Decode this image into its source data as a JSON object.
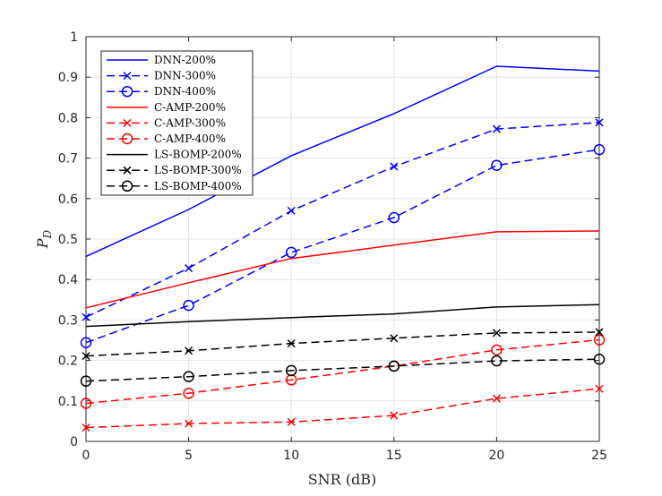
{
  "chart_data": {
    "type": "line",
    "title": "",
    "xlabel": "SNR (dB)",
    "ylabel_main": "P",
    "ylabel_sub": "D",
    "x": [
      0,
      5,
      10,
      15,
      20,
      25
    ],
    "xlim": [
      0,
      25
    ],
    "ylim": [
      0,
      1
    ],
    "xticks": [
      0,
      5,
      10,
      15,
      20,
      25
    ],
    "yticks": [
      0,
      0.1,
      0.2,
      0.3,
      0.4,
      0.5,
      0.6,
      0.7,
      0.8,
      0.9,
      1
    ],
    "ytick_labels": [
      "0",
      "0.1",
      "0.2",
      "0.3",
      "0.4",
      "0.5",
      "0.6",
      "0.7",
      "0.8",
      "0.9",
      "1"
    ],
    "grid": true,
    "legend_position": "top-left",
    "series": [
      {
        "name": "DNN-200%",
        "values": [
          0.457,
          0.573,
          0.706,
          0.81,
          0.927,
          0.915
        ],
        "color": "#0000ff",
        "dash": "solid",
        "marker": "none"
      },
      {
        "name": "DNN-300%",
        "values": [
          0.307,
          0.428,
          0.57,
          0.679,
          0.772,
          0.788
        ],
        "color": "#0000ff",
        "dash": "dashed",
        "marker": "x"
      },
      {
        "name": "DNN-400%",
        "values": [
          0.244,
          0.336,
          0.467,
          0.553,
          0.682,
          0.721
        ],
        "color": "#0000ff",
        "dash": "dashed",
        "marker": "o"
      },
      {
        "name": "C-AMP-200%",
        "values": [
          0.33,
          0.392,
          0.452,
          0.485,
          0.518,
          0.52
        ],
        "color": "#ff0000",
        "dash": "solid",
        "marker": "none"
      },
      {
        "name": "C-AMP-300%",
        "values": [
          0.034,
          0.044,
          0.048,
          0.064,
          0.106,
          0.13
        ],
        "color": "#ff0000",
        "dash": "dashed",
        "marker": "x"
      },
      {
        "name": "C-AMP-400%",
        "values": [
          0.094,
          0.119,
          0.152,
          0.186,
          0.226,
          0.251
        ],
        "color": "#ff0000",
        "dash": "dashed",
        "marker": "o"
      },
      {
        "name": "LS-BOMP-200%",
        "values": [
          0.284,
          0.296,
          0.306,
          0.315,
          0.332,
          0.338
        ],
        "color": "#000000",
        "dash": "solid",
        "marker": "none"
      },
      {
        "name": "LS-BOMP-300%",
        "values": [
          0.211,
          0.224,
          0.242,
          0.255,
          0.268,
          0.27
        ],
        "color": "#000000",
        "dash": "dashed",
        "marker": "x"
      },
      {
        "name": "LS-BOMP-400%",
        "values": [
          0.149,
          0.16,
          0.175,
          0.186,
          0.199,
          0.203
        ],
        "color": "#000000",
        "dash": "dashed",
        "marker": "o"
      }
    ]
  }
}
